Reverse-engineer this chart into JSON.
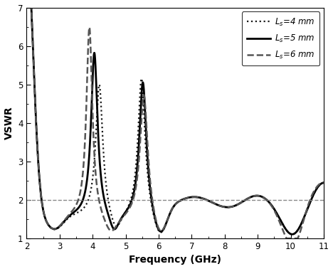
{
  "title": "",
  "xlabel": "Frequency (GHz)",
  "ylabel": "VSWR",
  "xlim": [
    2,
    11
  ],
  "ylim": [
    1,
    7
  ],
  "yticks": [
    1,
    2,
    3,
    4,
    5,
    6,
    7
  ],
  "xticks": [
    2,
    3,
    4,
    5,
    6,
    7,
    8,
    9,
    10,
    11
  ],
  "hline_y": 2.0,
  "legend": [
    {
      "label": "$L_s$=4 mm",
      "style": "dotted",
      "color": "#1a1a1a",
      "lw": 1.6
    },
    {
      "label": "$L_s$=5 mm",
      "style": "solid",
      "color": "#000000",
      "lw": 2.0
    },
    {
      "label": "$L_s$=6 mm",
      "style": "dashed",
      "color": "#555555",
      "lw": 1.8
    }
  ],
  "figsize": [
    4.68,
    3.78
  ],
  "dpi": 100
}
